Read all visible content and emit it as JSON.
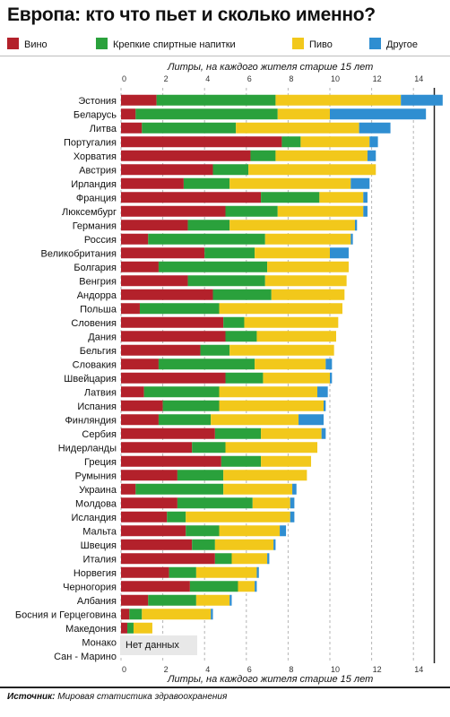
{
  "header": {
    "title": "Европа: кто что пьет и сколько именно?"
  },
  "legend": [
    {
      "label": "Вино",
      "color": "#b3212b"
    },
    {
      "label": "Крепкие спиртные напитки",
      "color": "#2aa13c"
    },
    {
      "label": "Пиво",
      "color": "#f2c81b"
    },
    {
      "label": "Другое",
      "color": "#2f8ed1"
    }
  ],
  "axis": {
    "title_top": "Литры, на каждого жителя старше 15 лет",
    "title_bottom": "Литры, на каждого жителя старше 15 лет"
  },
  "nodata": {
    "label": "Нет данных"
  },
  "footer": {
    "source_label": "Источник:",
    "source_text": "Мировая статистика здравоохранения"
  },
  "chart_data": {
    "type": "bar",
    "orientation": "horizontal",
    "stacked": true,
    "title": "Европа: кто что пьет и сколько именно?",
    "xlabel": "Литры, на каждого жителя старше 15 лет",
    "xlim": [
      0,
      15
    ],
    "xticks": [
      0,
      2,
      4,
      6,
      8,
      10,
      12,
      14
    ],
    "grid": "vertical dashed",
    "legend_position": "top",
    "categories": [
      "Эстония",
      "Беларусь",
      "Литва",
      "Португалия",
      "Хорватия",
      "Австрия",
      "Ирландия",
      "Франция",
      "Люксембург",
      "Германия",
      "Россия",
      "Великобритания",
      "Болгария",
      "Венгрия",
      "Андорра",
      "Польша",
      "Словения",
      "Дания",
      "Бельгия",
      "Словакия",
      "Швейцария",
      "Латвия",
      "Испания",
      "Финляндия",
      "Сербия",
      "Нидерланды",
      "Греция",
      "Румыния",
      "Украина",
      "Молдова",
      "Исландия",
      "Мальта",
      "Швеция",
      "Италия",
      "Норвегия",
      "Черногория",
      "Албания",
      "Босния и Герцеговина",
      "Македония",
      "Монако",
      "Сан - Марино"
    ],
    "series": [
      {
        "name": "Вино",
        "color": "#b3212b",
        "values": [
          1.7,
          0.7,
          1.0,
          7.7,
          6.2,
          4.4,
          3.0,
          6.7,
          5.0,
          3.2,
          1.3,
          4.0,
          1.8,
          3.2,
          4.4,
          0.9,
          4.9,
          5.0,
          3.8,
          1.8,
          5.0,
          1.1,
          2.0,
          1.8,
          4.5,
          3.4,
          4.8,
          2.7,
          0.7,
          2.7,
          2.2,
          3.1,
          3.4,
          4.5,
          2.3,
          3.3,
          1.3,
          0.4,
          0.3,
          null,
          null
        ]
      },
      {
        "name": "Крепкие спиртные напитки",
        "color": "#2aa13c",
        "values": [
          5.7,
          6.8,
          4.5,
          0.9,
          1.2,
          1.7,
          2.2,
          2.8,
          2.5,
          2.0,
          5.6,
          2.4,
          5.2,
          3.7,
          2.8,
          3.8,
          1.0,
          1.5,
          1.4,
          4.6,
          1.8,
          3.6,
          2.7,
          2.5,
          2.2,
          1.6,
          1.9,
          2.2,
          4.2,
          3.6,
          0.9,
          1.6,
          1.1,
          0.8,
          1.3,
          2.3,
          2.3,
          0.6,
          0.3,
          null,
          null
        ]
      },
      {
        "name": "Пиво",
        "color": "#f2c81b",
        "values": [
          6.0,
          2.5,
          5.9,
          3.3,
          4.4,
          6.1,
          5.8,
          2.1,
          4.1,
          6.0,
          4.1,
          3.6,
          3.9,
          3.9,
          3.5,
          5.9,
          4.5,
          3.8,
          5.0,
          3.4,
          3.2,
          4.7,
          5.0,
          4.2,
          2.9,
          4.4,
          2.4,
          4.0,
          3.3,
          1.8,
          5.0,
          2.9,
          2.8,
          1.7,
          2.9,
          0.8,
          1.6,
          3.3,
          0.9,
          null,
          null
        ]
      },
      {
        "name": "Другое",
        "color": "#2f8ed1",
        "values": [
          2.0,
          4.6,
          1.5,
          0.4,
          0.4,
          0.0,
          0.9,
          0.2,
          0.2,
          0.1,
          0.1,
          0.9,
          0.0,
          0.0,
          0.0,
          0.0,
          0.0,
          0.0,
          0.0,
          0.3,
          0.1,
          0.5,
          0.1,
          1.2,
          0.2,
          0.0,
          0.0,
          0.0,
          0.2,
          0.2,
          0.2,
          0.3,
          0.1,
          0.1,
          0.1,
          0.1,
          0.1,
          0.1,
          0.0,
          null,
          null
        ]
      }
    ],
    "no_data": [
      "Монако",
      "Сан - Марино"
    ]
  }
}
